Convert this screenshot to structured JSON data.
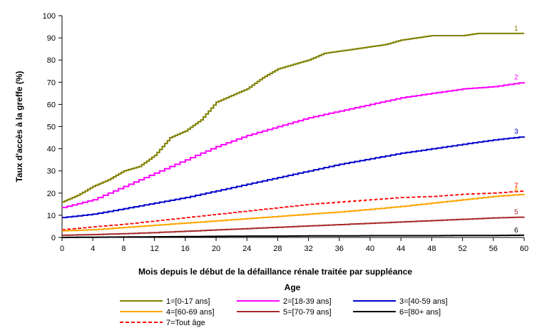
{
  "chart_data": {
    "type": "line",
    "xlabel": "Mois depuis le début de la défaillance rénale traitée par suppléance",
    "ylabel": "Taux d'accès à la greffe (%)",
    "xlim": [
      0,
      60
    ],
    "ylim": [
      0,
      100
    ],
    "xticks": [
      0,
      4,
      8,
      12,
      16,
      20,
      24,
      28,
      32,
      36,
      40,
      44,
      48,
      52,
      56,
      60
    ],
    "yticks": [
      0,
      10,
      20,
      30,
      40,
      50,
      60,
      70,
      80,
      90,
      100
    ],
    "grid": false,
    "legend": {
      "title": "Age",
      "placement": "bottom"
    },
    "series": [
      {
        "id": "1",
        "name": "1=[0-17 ans]",
        "end_label": "1",
        "color": "#808000",
        "dash": false,
        "x": [
          0,
          2,
          4,
          6,
          8,
          10,
          12,
          14,
          16,
          18,
          20,
          22,
          24,
          26,
          28,
          30,
          32,
          34,
          36,
          38,
          40,
          42,
          44,
          46,
          48,
          50,
          52,
          54,
          56,
          58,
          60
        ],
        "y": [
          16,
          19,
          23,
          26,
          30,
          32,
          37,
          45,
          48,
          53,
          61,
          64,
          67,
          72,
          76,
          78,
          80,
          83,
          84,
          85,
          86,
          87,
          89,
          90,
          91,
          91,
          91,
          92,
          92,
          92,
          92
        ]
      },
      {
        "id": "2",
        "name": "2=[18-39 ans]",
        "end_label": "2",
        "color": "#ff00ff",
        "dash": false,
        "x": [
          0,
          4,
          8,
          12,
          16,
          20,
          24,
          28,
          32,
          36,
          40,
          44,
          48,
          52,
          56,
          60
        ],
        "y": [
          13.5,
          17,
          23,
          29,
          35,
          41,
          46,
          50,
          54,
          57,
          60,
          63,
          65,
          67,
          68,
          70
        ]
      },
      {
        "id": "3",
        "name": "3=[40-59 ans]",
        "end_label": "3",
        "color": "#0000cc",
        "dash": false,
        "x": [
          0,
          4,
          8,
          12,
          16,
          20,
          24,
          28,
          32,
          36,
          40,
          44,
          48,
          52,
          56,
          60
        ],
        "y": [
          9,
          10.5,
          13,
          15.5,
          18,
          21,
          24,
          27,
          30,
          33,
          35.5,
          38,
          40,
          42,
          44,
          45.5
        ]
      },
      {
        "id": "4",
        "name": "4=[60-69 ans]",
        "end_label": "4",
        "color": "#ffa500",
        "dash": false,
        "x": [
          0,
          4,
          8,
          12,
          16,
          20,
          24,
          28,
          32,
          36,
          40,
          44,
          48,
          52,
          56,
          60
        ],
        "y": [
          3,
          3.5,
          4.5,
          5.5,
          6.5,
          7.5,
          8.5,
          9.5,
          10.5,
          11.5,
          12.7,
          14,
          15.5,
          17,
          18.5,
          19.5
        ]
      },
      {
        "id": "5",
        "name": "5=[70-79 ans]",
        "end_label": "5",
        "color": "#a52a2a",
        "dash": false,
        "x": [
          0,
          4,
          8,
          12,
          16,
          20,
          24,
          28,
          32,
          36,
          40,
          44,
          48,
          52,
          56,
          60
        ],
        "y": [
          1,
          1.3,
          1.7,
          2.2,
          2.8,
          3.4,
          4,
          4.6,
          5.2,
          5.8,
          6.4,
          7,
          7.6,
          8.2,
          8.8,
          9.2
        ]
      },
      {
        "id": "6",
        "name": "6=[80+ ans]",
        "end_label": "6",
        "color": "#000000",
        "dash": false,
        "x": [
          0,
          4,
          8,
          12,
          16,
          20,
          24,
          28,
          32,
          36,
          40,
          44,
          48,
          52,
          56,
          60
        ],
        "y": [
          0,
          0.1,
          0.2,
          0.3,
          0.4,
          0.5,
          0.6,
          0.6,
          0.7,
          0.7,
          0.8,
          0.8,
          0.8,
          0.9,
          0.9,
          1
        ]
      },
      {
        "id": "7",
        "name": "7=Tout âge",
        "end_label": "7",
        "color": "#ff0000",
        "dash": true,
        "x": [
          0,
          4,
          8,
          12,
          16,
          20,
          24,
          28,
          32,
          36,
          40,
          44,
          48,
          52,
          56,
          60
        ],
        "y": [
          3.5,
          4.8,
          6,
          7.5,
          9,
          10.5,
          12,
          13.5,
          15,
          16,
          17,
          18,
          18.5,
          19.5,
          20,
          21
        ]
      }
    ]
  }
}
